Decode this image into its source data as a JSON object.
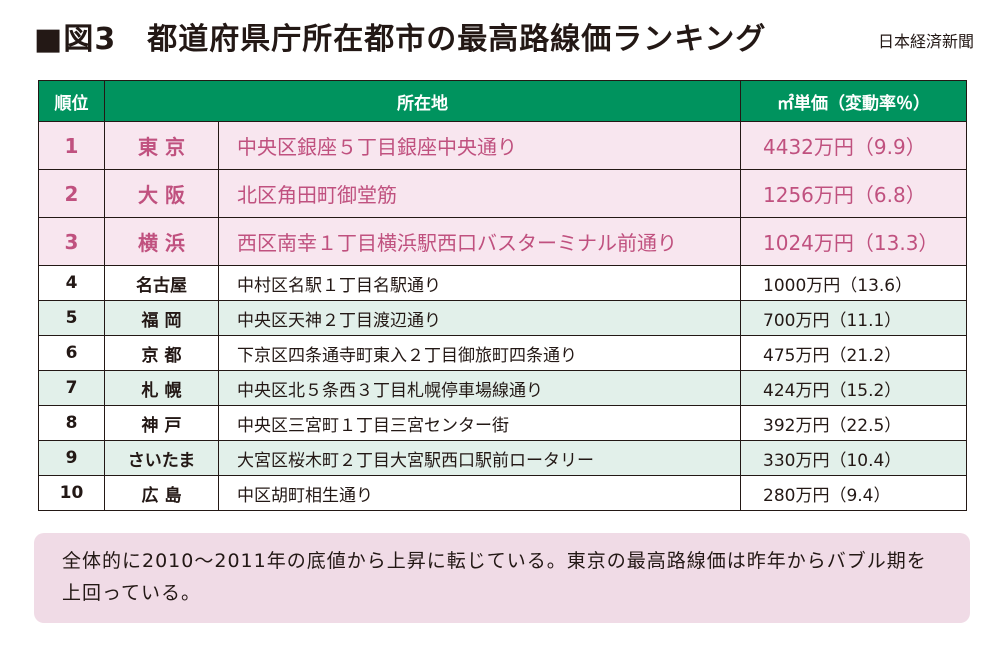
{
  "header": {
    "title": "■図3　都道府県庁所在都市の最高路線価ランキング",
    "source": "日本経済新聞"
  },
  "table": {
    "columns": [
      "順位",
      "所在地",
      "㎡単価（変動率％）"
    ],
    "rows": [
      {
        "rank": "1",
        "city": "東 京",
        "location": "中央区銀座５丁目銀座中央通り",
        "price": "4432万円（9.9）"
      },
      {
        "rank": "2",
        "city": "大 阪",
        "location": "北区角田町御堂筋",
        "price": "1256万円（6.8）"
      },
      {
        "rank": "3",
        "city": "横 浜",
        "location": "西区南幸１丁目横浜駅西口バスターミナル前通り",
        "price": "1024万円（13.3）"
      },
      {
        "rank": "4",
        "city": "名古屋",
        "location": "中村区名駅１丁目名駅通り",
        "price": "1000万円（13.6）"
      },
      {
        "rank": "5",
        "city": "福 岡",
        "location": "中央区天神２丁目渡辺通り",
        "price": "700万円（11.1）"
      },
      {
        "rank": "6",
        "city": "京 都",
        "location": "下京区四条通寺町東入２丁目御旅町四条通り",
        "price": "475万円（21.2）"
      },
      {
        "rank": "7",
        "city": "札 幌",
        "location": "中央区北５条西３丁目札幌停車場線通り",
        "price": "424万円（15.2）"
      },
      {
        "rank": "8",
        "city": "神 戸",
        "location": "中央区三宮町１丁目三宮センター街",
        "price": "392万円（22.5）"
      },
      {
        "rank": "9",
        "city": "さいたま",
        "location": "大宮区桜木町２丁目大宮駅西口駅前ロータリー",
        "price": "330万円（10.4）"
      },
      {
        "rank": "10",
        "city": "広 島",
        "location": "中区胡町相生通り",
        "price": "280万円（9.4）"
      }
    ]
  },
  "note": {
    "text": "全体的に2010〜2011年の底値から上昇に転じている。東京の最高路線価は昨年からバブル期を上回っている。"
  }
}
